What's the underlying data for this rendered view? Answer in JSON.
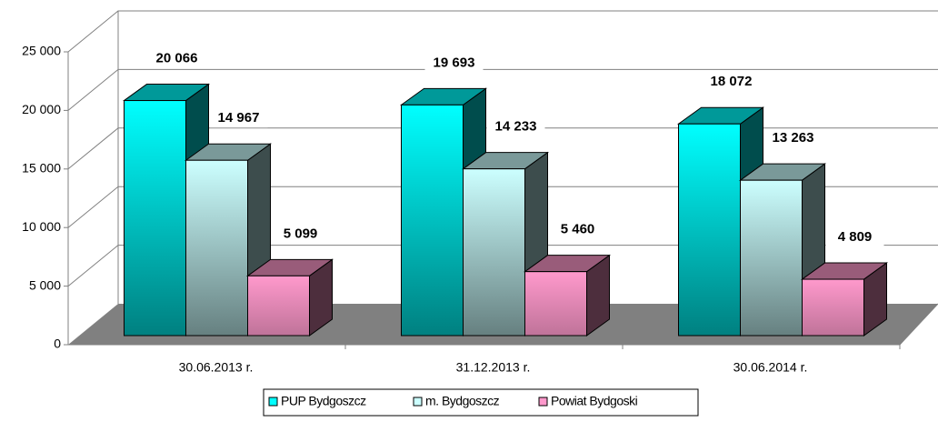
{
  "chart_data": {
    "type": "bar3d",
    "categories": [
      "30.06.2013 r.",
      "31.12.2013 r.",
      "30.06.2014 r."
    ],
    "series": [
      {
        "name": "PUP Bydgoszcz",
        "color": "#00ffff",
        "values": [
          20066,
          19693,
          18072
        ],
        "value_labels": [
          "20 066",
          "19 693",
          "18 072"
        ]
      },
      {
        "name": "m. Bydgoszcz",
        "color": "#ccffff",
        "values": [
          14967,
          14233,
          13263
        ],
        "value_labels": [
          "14 967",
          "14 233",
          "13 263"
        ]
      },
      {
        "name": "Powiat Bydgoski",
        "color": "#ff99cc",
        "values": [
          5099,
          5460,
          4809
        ],
        "value_labels": [
          "5 099",
          "5 460",
          "4 809"
        ]
      }
    ],
    "ylim": [
      0,
      25000
    ],
    "yticks": [
      {
        "value": 0,
        "label": "0"
      },
      {
        "value": 5000,
        "label": "5 000"
      },
      {
        "value": 10000,
        "label": "10 000"
      },
      {
        "value": 15000,
        "label": "15 000"
      },
      {
        "value": 20000,
        "label": "20 000"
      },
      {
        "value": 25000,
        "label": "25 000"
      }
    ],
    "grid": true,
    "legend": "bottom"
  }
}
